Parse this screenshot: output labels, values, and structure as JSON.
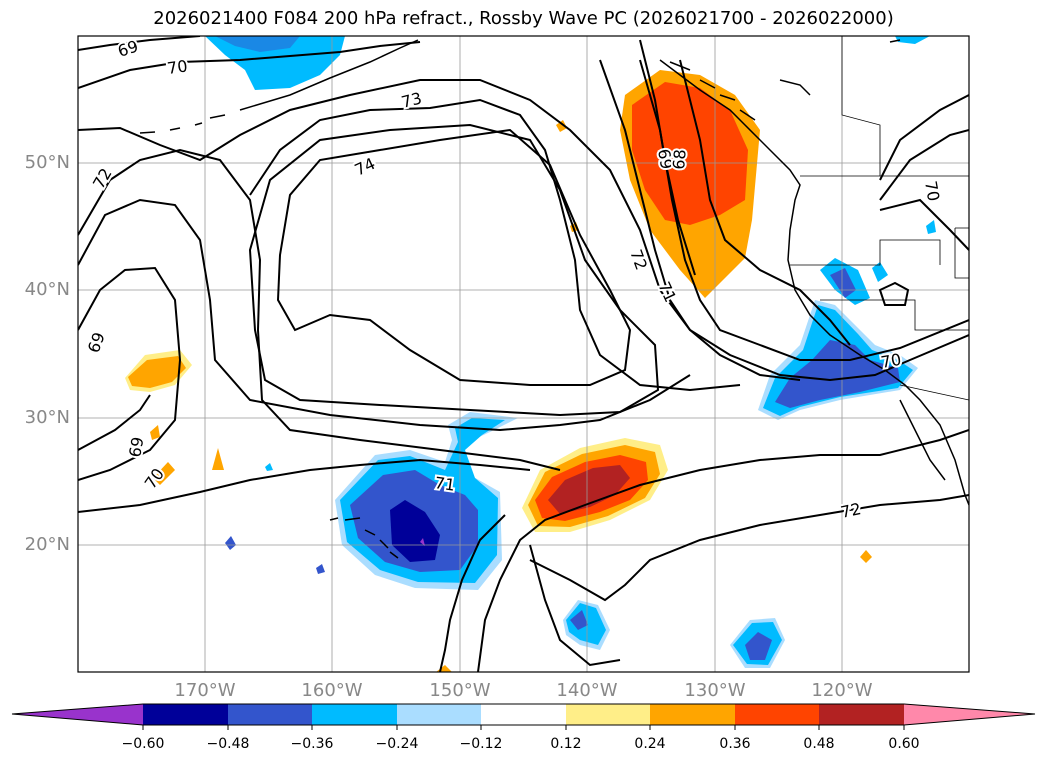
{
  "title": "2026021400 F084 200 hPa refract., Rossby Wave PC (2026021700 - 2026022000)",
  "colors": {
    "neg_060": "#9933cc",
    "neg_048": "#000099",
    "neg_036": "#3355cc",
    "neg_024": "#00bbff",
    "neg_012": "#aaddff",
    "pos_012": "#ffee88",
    "pos_024": "#ffa500",
    "pos_036": "#ff4400",
    "pos_048": "#b22222",
    "pos_060": "#ff88aa",
    "grid": "#999999",
    "coast": "#000000"
  },
  "lat_labels": [
    "50°N",
    "40°N",
    "30°N",
    "20°N"
  ],
  "lon_labels": [
    "170°W",
    "160°W",
    "150°W",
    "140°W",
    "130°W",
    "120°W"
  ],
  "colorbar_labels": [
    "−0.60",
    "−0.48",
    "−0.36",
    "−0.24",
    "−0.12",
    "0.12",
    "0.24",
    "0.36",
    "0.48",
    "0.60"
  ],
  "contour_labels": {
    "c69_a": "69",
    "c70_a": "70",
    "c72_a": "72",
    "c73": "73",
    "c74": "74",
    "c69_b": "69",
    "c69_c": "69",
    "c70_b": "70",
    "c71_a": "71",
    "c72_b": "72",
    "c69_d": "69",
    "c68": "68",
    "c72_c": "72",
    "c71_b": "71",
    "c70_c": "70",
    "c70_d": "70",
    "c72_d": "72"
  }
}
